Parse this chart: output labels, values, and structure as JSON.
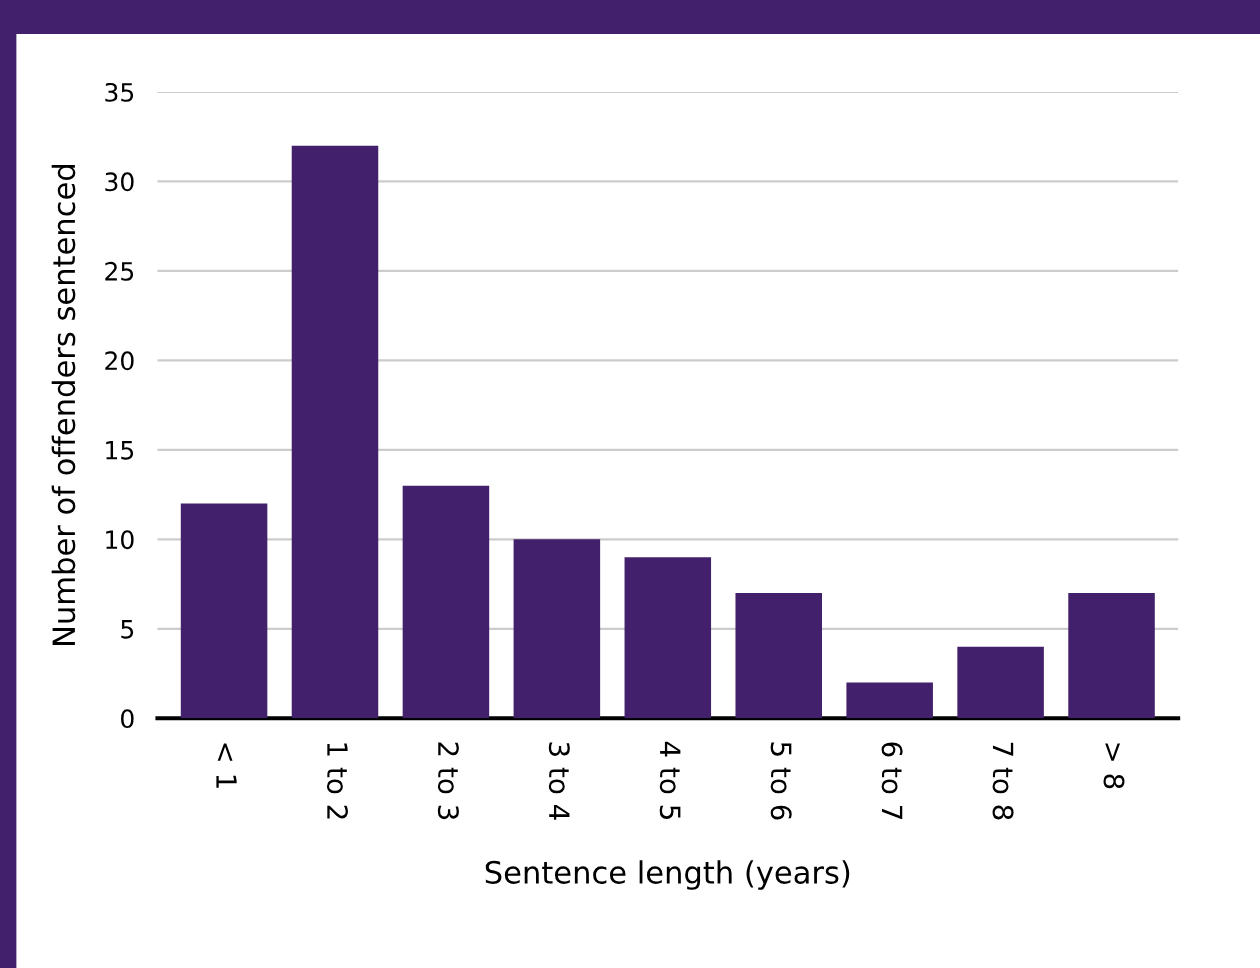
{
  "chart_data": {
    "type": "bar",
    "xlabel": "Sentence length (years)",
    "ylabel": "Number of offenders sentenced",
    "categories": [
      "< 1",
      "1 to 2",
      "2 to 3",
      "3 to 4",
      "4 to 5",
      "5 to 6",
      "6 to 7",
      "7 to 8",
      "> 8"
    ],
    "values": [
      12,
      32,
      13,
      10,
      9,
      7,
      2,
      4,
      7
    ],
    "color": "#43206b",
    "ylim": [
      0,
      35
    ],
    "yticks": [
      0,
      5,
      10,
      15,
      20,
      25,
      30,
      35
    ],
    "grid": "y",
    "legend": false
  }
}
